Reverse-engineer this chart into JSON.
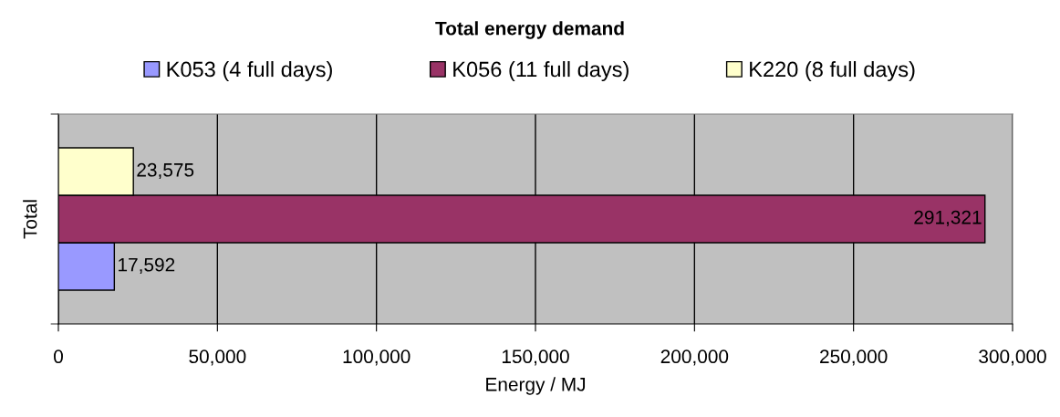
{
  "chart_data": {
    "type": "bar",
    "orientation": "horizontal",
    "title": "Total energy demand",
    "xlabel": "Energy / MJ",
    "categories": [
      "Total"
    ],
    "series": [
      {
        "name": "K053 (4 full days)",
        "color": "#9999ff",
        "values": [
          17592
        ],
        "value_labels": [
          "17,592"
        ]
      },
      {
        "name": "K056 (11 full days)",
        "color": "#993366",
        "values": [
          291321
        ],
        "value_labels": [
          "291,321"
        ]
      },
      {
        "name": "K220 (8 full days)",
        "color": "#ffffcc",
        "values": [
          23575
        ],
        "value_labels": [
          "23,575"
        ]
      }
    ],
    "xlim": [
      0,
      300000
    ],
    "xticks": [
      0,
      {
        "value": 50000,
        "label": "50,000"
      },
      {
        "value": 100000,
        "label": "100,000"
      },
      {
        "value": 150000,
        "label": "150,000"
      },
      {
        "value": 200000,
        "label": "200,000"
      },
      {
        "value": 250000,
        "label": "250,000"
      },
      {
        "value": 300000,
        "label": "300,000"
      }
    ],
    "grid": "x",
    "legend": "top"
  }
}
